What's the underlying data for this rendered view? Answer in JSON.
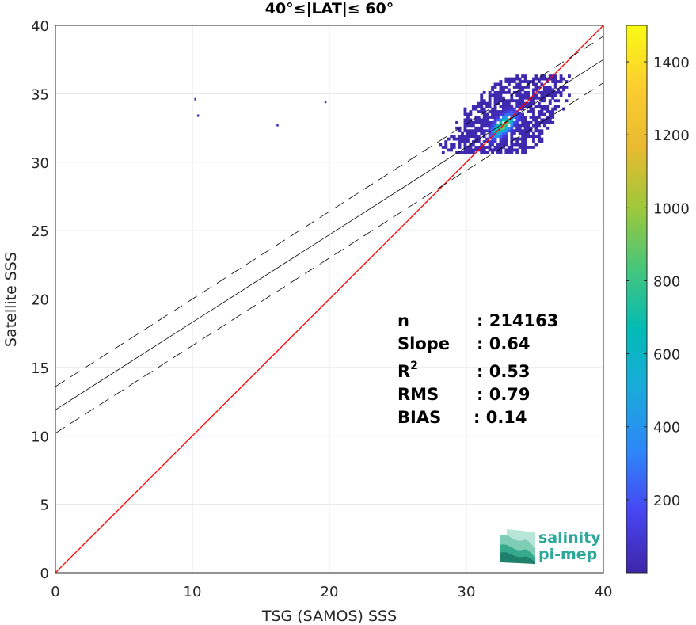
{
  "chart_data": {
    "type": "heatmap",
    "title": "40°≤|LAT|≤ 60°",
    "xlabel": "TSG (SAMOS) SSS",
    "ylabel": "Satellite SSS",
    "xlim": [
      0,
      40
    ],
    "ylim": [
      0,
      40
    ],
    "xticks": [
      0,
      10,
      20,
      30,
      40
    ],
    "yticks": [
      0,
      5,
      10,
      15,
      20,
      25,
      30,
      35,
      40
    ],
    "grid": true,
    "reference_line": {
      "color": "#ff0000",
      "x": [
        0,
        40
      ],
      "y": [
        0,
        40
      ]
    },
    "regression_line": {
      "color": "#000000",
      "x": [
        0,
        40
      ],
      "y": [
        11.9,
        37.5
      ]
    },
    "confidence_upper": {
      "color": "#000000",
      "style": "dashed",
      "x": [
        0,
        40
      ],
      "y": [
        13.6,
        39.2
      ]
    },
    "confidence_lower": {
      "color": "#000000",
      "style": "dashed",
      "x": [
        0,
        40
      ],
      "y": [
        10.2,
        35.8
      ]
    },
    "density": {
      "center": [
        32.6,
        32.6
      ],
      "x_range": [
        27.2,
        37.5
      ],
      "y_range": [
        30.6,
        36.3
      ],
      "max_count": 1100,
      "outliers": [
        [
          10.2,
          34.6
        ],
        [
          10.4,
          33.4
        ],
        [
          16.2,
          32.7
        ],
        [
          19.7,
          34.4
        ]
      ]
    },
    "colorbar": {
      "min": 0,
      "max": 1500,
      "ticks": [
        200,
        400,
        600,
        800,
        1000,
        1200,
        1400
      ],
      "colors": [
        "#3e26a8",
        "#4745f2",
        "#2e87f8",
        "#1aa9dc",
        "#02bbb5",
        "#46c67b",
        "#9fc83b",
        "#e9ba30",
        "#fcce2f",
        "#f9fb15"
      ]
    },
    "stats": {
      "n_label": "n",
      "n_value": ": 214163",
      "slope_label": "Slope",
      "slope_value": ": 0.64",
      "r2_base": "R",
      "r2_sup": "2",
      "r2_value": ": 0.53",
      "rms_label": "RMS",
      "rms_value": ": 0.79",
      "bias_label": "BIAS",
      "bias_value": ": 0.14"
    },
    "logo": {
      "line1": "salinity",
      "line2": "pi-mep"
    }
  }
}
